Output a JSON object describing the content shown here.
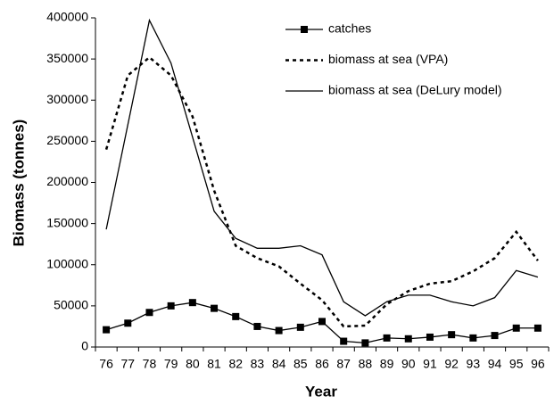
{
  "chart_data": {
    "type": "line",
    "categories": [
      "76",
      "77",
      "78",
      "79",
      "80",
      "81",
      "82",
      "83",
      "84",
      "85",
      "86",
      "87",
      "88",
      "89",
      "90",
      "91",
      "92",
      "93",
      "94",
      "95",
      "96"
    ],
    "x_label": "Year",
    "y_label": "Biomass (tonnes)",
    "ylim": [
      0,
      400000
    ],
    "yticks": [
      0,
      50000,
      100000,
      150000,
      200000,
      250000,
      300000,
      350000,
      400000
    ],
    "legend": "upper right",
    "series": [
      {
        "name": "catches",
        "color": "#000000",
        "line_style": "solid",
        "marker": "square",
        "values": [
          21000,
          29000,
          42000,
          50000,
          54000,
          47000,
          37000,
          25000,
          20000,
          24000,
          31000,
          7000,
          5000,
          11000,
          10000,
          12000,
          15000,
          11000,
          14000,
          23000,
          23000
        ]
      },
      {
        "name": "biomass at sea (VPA)",
        "color": "#000000",
        "line_style": "dotted",
        "marker": "none",
        "values": [
          240000,
          330000,
          352000,
          330000,
          280000,
          190000,
          123000,
          108000,
          98000,
          77000,
          57000,
          25000,
          26000,
          52000,
          68000,
          77000,
          80000,
          92000,
          108000,
          140000,
          105000
        ]
      },
      {
        "name": "biomass at sea (DeLury model)",
        "color": "#000000",
        "line_style": "solid",
        "marker": "none",
        "values": [
          143000,
          270000,
          397000,
          345000,
          255000,
          165000,
          132000,
          120000,
          120000,
          123000,
          112000,
          55000,
          38000,
          55000,
          63000,
          63000,
          55000,
          50000,
          60000,
          93000,
          85000
        ]
      }
    ]
  }
}
